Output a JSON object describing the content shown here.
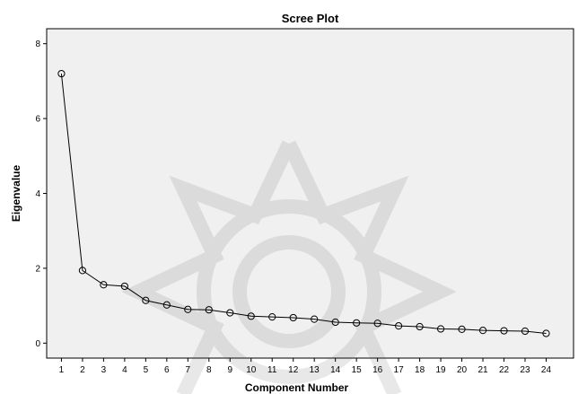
{
  "chart_data": {
    "type": "line",
    "title": "Scree Plot",
    "xlabel": "Component Number",
    "ylabel": "Eigenvalue",
    "x": [
      1,
      2,
      3,
      4,
      5,
      6,
      7,
      8,
      9,
      10,
      11,
      12,
      13,
      14,
      15,
      16,
      17,
      18,
      19,
      20,
      21,
      22,
      23,
      24
    ],
    "x_tick_labels": [
      "1",
      "2",
      "3",
      "4",
      "5",
      "6",
      "7",
      "8",
      "9",
      "10",
      "11",
      "12",
      "13",
      "14",
      "15",
      "16",
      "17",
      "18",
      "19",
      "20",
      "21",
      "22",
      "23",
      "24"
    ],
    "series": [
      {
        "values": [
          7.2,
          1.94,
          1.56,
          1.52,
          1.14,
          1.02,
          0.9,
          0.89,
          0.81,
          0.72,
          0.7,
          0.68,
          0.64,
          0.56,
          0.54,
          0.53,
          0.46,
          0.44,
          0.38,
          0.37,
          0.34,
          0.33,
          0.32,
          0.26
        ]
      }
    ],
    "yticks": [
      0,
      2,
      4,
      6,
      8
    ],
    "y_tick_labels": [
      "0",
      "2",
      "4",
      "6",
      "8"
    ],
    "ylim": [
      -0.4,
      8.4
    ],
    "xlim": [
      0.3,
      25.3
    ],
    "grid": false,
    "legend": "none",
    "colors": {
      "plot_background": "#f0f0f0",
      "line": "#000000",
      "marker_stroke": "#000000"
    }
  }
}
